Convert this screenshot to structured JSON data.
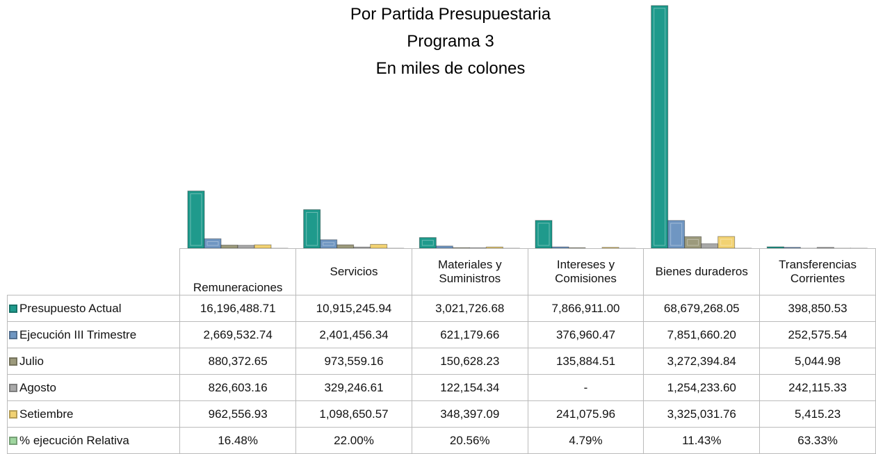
{
  "chart_data": {
    "type": "bar",
    "title": [
      "Por Partida Presupuestaria",
      "Programa 3",
      "En miles de colones"
    ],
    "categories": [
      "Remuneraciones",
      "Servicios",
      "Materiales y Suministros",
      "Intereses y Comisiones",
      "Bienes duraderos",
      "Transferencias Corrientes"
    ],
    "series": [
      {
        "name": "Presupuesto Actual",
        "color": "#1f9a8c",
        "values": [
          16196488.71,
          10915245.94,
          3021726.68,
          7866911.0,
          68679268.05,
          398850.53
        ],
        "value_labels": [
          "16,196,488.71",
          "10,915,245.94",
          "3,021,726.68",
          "7,866,911.00",
          "68,679,268.05",
          "398,850.53"
        ]
      },
      {
        "name": "Ejecución III Trimestre",
        "color": "#6f96c2",
        "values": [
          2669532.74,
          2401456.34,
          621179.66,
          376960.47,
          7851660.2,
          252575.54
        ],
        "value_labels": [
          "2,669,532.74",
          "2,401,456.34",
          "621,179.66",
          "376,960.47",
          "7,851,660.20",
          "252,575.54"
        ]
      },
      {
        "name": "Julio",
        "color": "#9c9a7c",
        "values": [
          880372.65,
          973559.16,
          150628.23,
          135884.51,
          3272394.84,
          5044.98
        ],
        "value_labels": [
          "880,372.65",
          "973,559.16",
          "150,628.23",
          "135,884.51",
          "3,272,394.84",
          "5,044.98"
        ]
      },
      {
        "name": "Agosto",
        "color": "#a9a9a9",
        "values": [
          826603.16,
          329246.61,
          122154.34,
          null,
          1254233.6,
          242115.33
        ],
        "value_labels": [
          "826,603.16",
          "329,246.61",
          "122,154.34",
          "-",
          "1,254,233.60",
          "242,115.33"
        ]
      },
      {
        "name": "Setiembre",
        "color": "#f2d272",
        "values": [
          962556.93,
          1098650.57,
          348397.09,
          241075.96,
          3325031.76,
          5415.23
        ],
        "value_labels": [
          "962,556.93",
          "1,098,650.57",
          "348,397.09",
          "241,075.96",
          "3,325,031.76",
          "5,415.23"
        ]
      },
      {
        "name": "% ejecución Relativa",
        "color": "#9fd69f",
        "values": [
          16.48,
          22.0,
          20.56,
          4.79,
          11.43,
          63.33
        ],
        "value_labels": [
          "16.48%",
          "22.00%",
          "20.56%",
          "4.79%",
          "11.43%",
          "63.33%"
        ]
      }
    ]
  }
}
